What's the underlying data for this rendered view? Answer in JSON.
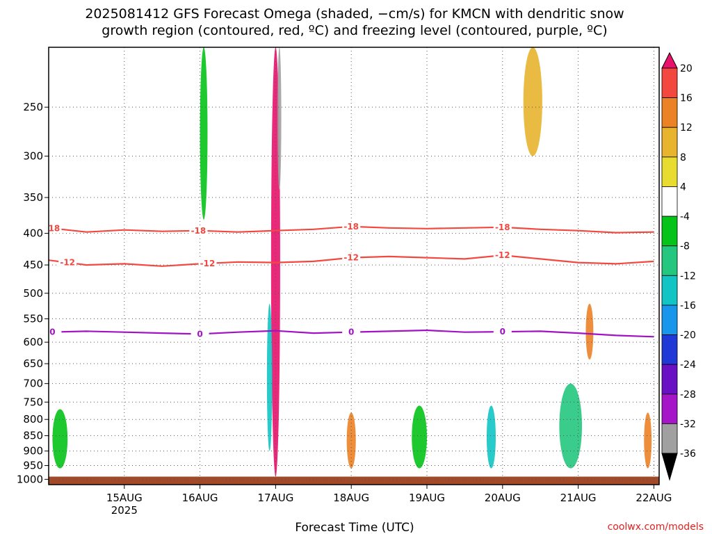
{
  "chart_data": {
    "type": "heatmap",
    "title_lines": [
      "2025081412 GFS Forecast Omega (shaded, −cm/s) for KMCN with dendritic snow",
      "growth region (contoured, red, ºC) and freezing level (contoured, purple, ºC)"
    ],
    "xlabel": "Forecast Time (UTC)",
    "x_ticks": [
      {
        "label": "15AUG",
        "sub": "2025",
        "day": 1
      },
      {
        "label": "16AUG",
        "sub": "",
        "day": 2
      },
      {
        "label": "17AUG",
        "sub": "",
        "day": 3
      },
      {
        "label": "18AUG",
        "sub": "",
        "day": 4
      },
      {
        "label": "19AUG",
        "sub": "",
        "day": 5
      },
      {
        "label": "20AUG",
        "sub": "",
        "day": 6
      },
      {
        "label": "21AUG",
        "sub": "",
        "day": 7
      },
      {
        "label": "22AUG",
        "sub": "",
        "day": 8
      }
    ],
    "xlim_days": [
      0,
      8.07
    ],
    "y_ticks": [
      250,
      300,
      350,
      400,
      450,
      500,
      550,
      600,
      650,
      700,
      750,
      800,
      850,
      900,
      950,
      1000
    ],
    "ylim_hPa": [
      200,
      1020
    ],
    "y_scale": "log",
    "ground_hPa": 990,
    "colorbar": {
      "levels": [
        20,
        16,
        12,
        8,
        4,
        -4,
        -8,
        -12,
        -16,
        -20,
        -24,
        -28,
        -32,
        -36
      ],
      "colors": [
        "#e8126c",
        "#f24840",
        "#ec8226",
        "#e8b42e",
        "#e8dc30",
        "#ffffff",
        "#05c318",
        "#25c67e",
        "#12c4c4",
        "#1796ec",
        "#2038d6",
        "#6a10c4",
        "#a416c8",
        "#a0a0a0",
        "#000000"
      ]
    },
    "contours": [
      {
        "name": "-18",
        "color": "#f24840",
        "points": [
          [
            0,
            392
          ],
          [
            0.5,
            398
          ],
          [
            1,
            395
          ],
          [
            1.5,
            397
          ],
          [
            2,
            396
          ],
          [
            2.5,
            398
          ],
          [
            3,
            396
          ],
          [
            3.5,
            394
          ],
          [
            4,
            390
          ],
          [
            4.5,
            392
          ],
          [
            5,
            393
          ],
          [
            5.5,
            392
          ],
          [
            6,
            391
          ],
          [
            6.5,
            394
          ],
          [
            7,
            396
          ],
          [
            7.5,
            399
          ],
          [
            8,
            398
          ]
        ],
        "labels": [
          {
            "x": 0.05,
            "text": "-18"
          },
          {
            "x": 1.98,
            "text": "-18"
          },
          {
            "x": 4.0,
            "text": "-18"
          },
          {
            "x": 6.0,
            "text": "-18"
          }
        ]
      },
      {
        "name": "-12",
        "color": "#f24840",
        "points": [
          [
            0,
            442
          ],
          [
            0.5,
            450
          ],
          [
            1,
            448
          ],
          [
            1.5,
            452
          ],
          [
            2,
            448
          ],
          [
            2.5,
            445
          ],
          [
            3,
            446
          ],
          [
            3.5,
            444
          ],
          [
            4,
            438
          ],
          [
            4.5,
            436
          ],
          [
            5,
            438
          ],
          [
            5.5,
            440
          ],
          [
            6,
            434
          ],
          [
            6.5,
            440
          ],
          [
            7,
            446
          ],
          [
            7.5,
            448
          ],
          [
            8,
            444
          ]
        ],
        "labels": [
          {
            "x": 0.25,
            "text": "-12"
          },
          {
            "x": 2.1,
            "text": "-12"
          },
          {
            "x": 4.0,
            "text": "-12"
          },
          {
            "x": 6.0,
            "text": "-12"
          }
        ]
      },
      {
        "name": "0",
        "color": "#a012c4",
        "points": [
          [
            0,
            578
          ],
          [
            0.5,
            576
          ],
          [
            1,
            578
          ],
          [
            1.5,
            580
          ],
          [
            2,
            582
          ],
          [
            2.5,
            578
          ],
          [
            3,
            575
          ],
          [
            3.5,
            580
          ],
          [
            4,
            578
          ],
          [
            4.5,
            576
          ],
          [
            5,
            574
          ],
          [
            5.5,
            578
          ],
          [
            6,
            577
          ],
          [
            6.5,
            576
          ],
          [
            7,
            580
          ],
          [
            7.5,
            585
          ],
          [
            8,
            588
          ]
        ],
        "labels": [
          {
            "x": 0.05,
            "text": "0"
          },
          {
            "x": 2.0,
            "text": "0"
          },
          {
            "x": 4.0,
            "text": "0"
          },
          {
            "x": 6.0,
            "text": "0"
          }
        ]
      }
    ],
    "shaded_features": [
      {
        "day": 3.0,
        "p_top": 200,
        "p_bot": 990,
        "level": 20,
        "width": 0.12
      },
      {
        "day": 3.05,
        "p_top": 200,
        "p_bot": 340,
        "level": -36,
        "width": 0.05
      },
      {
        "day": 2.92,
        "p_top": 520,
        "p_bot": 900,
        "level": -16,
        "width": 0.07
      },
      {
        "day": 0.15,
        "p_top": 770,
        "p_bot": 960,
        "level": -8,
        "width": 0.2
      },
      {
        "day": 4.0,
        "p_top": 780,
        "p_bot": 960,
        "level": 12,
        "width": 0.12
      },
      {
        "day": 4.9,
        "p_top": 760,
        "p_bot": 960,
        "level": -8,
        "width": 0.2
      },
      {
        "day": 5.85,
        "p_top": 760,
        "p_bot": 960,
        "level": -16,
        "width": 0.12
      },
      {
        "day": 6.9,
        "p_top": 700,
        "p_bot": 960,
        "level": -12,
        "width": 0.3
      },
      {
        "day": 7.15,
        "p_top": 520,
        "p_bot": 640,
        "level": 12,
        "width": 0.1
      },
      {
        "day": 2.05,
        "p_top": 200,
        "p_bot": 380,
        "level": -8,
        "width": 0.1
      },
      {
        "day": 6.4,
        "p_top": 200,
        "p_bot": 300,
        "level": 8,
        "width": 0.25
      },
      {
        "day": 7.92,
        "p_top": 780,
        "p_bot": 960,
        "level": 12,
        "width": 0.1
      }
    ]
  },
  "credit": "coolwx.com/models"
}
